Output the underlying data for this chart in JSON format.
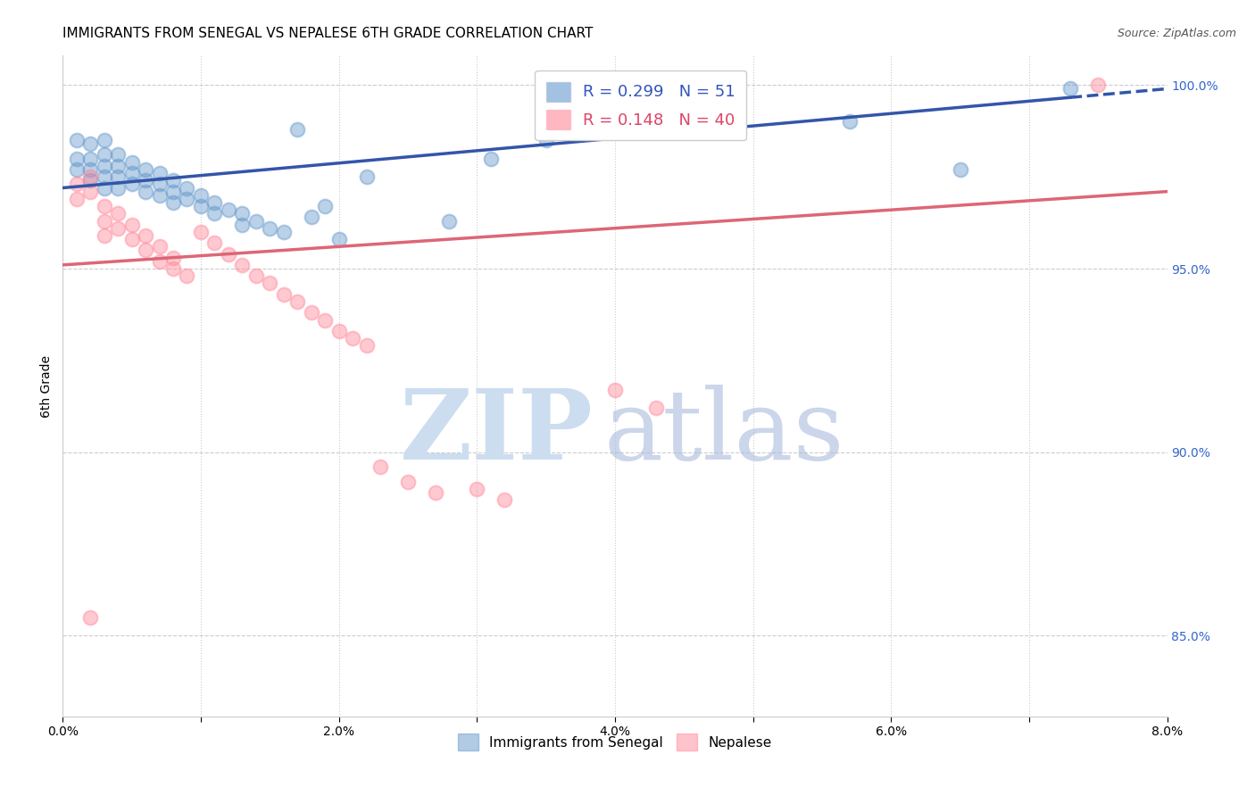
{
  "title": "IMMIGRANTS FROM SENEGAL VS NEPALESE 6TH GRADE CORRELATION CHART",
  "source": "Source: ZipAtlas.com",
  "ylabel": "6th Grade",
  "xlim": [
    0.0,
    0.08
  ],
  "ylim": [
    0.828,
    1.008
  ],
  "xticks": [
    0.0,
    0.01,
    0.02,
    0.03,
    0.04,
    0.05,
    0.06,
    0.07,
    0.08
  ],
  "xticklabels": [
    "0.0%",
    "",
    "2.0%",
    "",
    "4.0%",
    "",
    "6.0%",
    "",
    "8.0%"
  ],
  "yticks_right": [
    0.85,
    0.9,
    0.95,
    1.0
  ],
  "ytick_right_labels": [
    "85.0%",
    "90.0%",
    "95.0%",
    "100.0%"
  ],
  "legend_labels": [
    "Immigrants from Senegal",
    "Nepalese"
  ],
  "R_blue": 0.299,
  "N_blue": 51,
  "R_pink": 0.148,
  "N_pink": 40,
  "blue_color": "#6699CC",
  "pink_color": "#FF8899",
  "blue_line_color": "#3355AA",
  "pink_line_color": "#DD6677",
  "blue_line_y0": 0.972,
  "blue_line_y1": 0.999,
  "blue_line_x0": 0.0,
  "blue_line_x1": 0.08,
  "blue_line_solid_end": 0.073,
  "pink_line_y0": 0.951,
  "pink_line_y1": 0.971,
  "pink_line_x0": 0.0,
  "pink_line_x1": 0.08,
  "blue_scatter_x": [
    0.001,
    0.001,
    0.001,
    0.002,
    0.002,
    0.002,
    0.002,
    0.003,
    0.003,
    0.003,
    0.003,
    0.003,
    0.004,
    0.004,
    0.004,
    0.004,
    0.005,
    0.005,
    0.005,
    0.006,
    0.006,
    0.006,
    0.007,
    0.007,
    0.007,
    0.008,
    0.008,
    0.008,
    0.009,
    0.009,
    0.01,
    0.01,
    0.011,
    0.011,
    0.012,
    0.013,
    0.013,
    0.014,
    0.015,
    0.016,
    0.017,
    0.018,
    0.019,
    0.02,
    0.022,
    0.028,
    0.031,
    0.035,
    0.057,
    0.065,
    0.073
  ],
  "blue_scatter_y": [
    0.985,
    0.98,
    0.977,
    0.984,
    0.98,
    0.977,
    0.974,
    0.985,
    0.981,
    0.978,
    0.975,
    0.972,
    0.981,
    0.978,
    0.975,
    0.972,
    0.979,
    0.976,
    0.973,
    0.977,
    0.974,
    0.971,
    0.976,
    0.973,
    0.97,
    0.974,
    0.971,
    0.968,
    0.972,
    0.969,
    0.97,
    0.967,
    0.968,
    0.965,
    0.966,
    0.965,
    0.962,
    0.963,
    0.961,
    0.96,
    0.988,
    0.964,
    0.967,
    0.958,
    0.975,
    0.963,
    0.98,
    0.985,
    0.99,
    0.977,
    0.999
  ],
  "pink_scatter_x": [
    0.001,
    0.001,
    0.002,
    0.002,
    0.003,
    0.003,
    0.003,
    0.004,
    0.004,
    0.005,
    0.005,
    0.006,
    0.006,
    0.007,
    0.007,
    0.008,
    0.008,
    0.009,
    0.01,
    0.011,
    0.012,
    0.013,
    0.014,
    0.015,
    0.016,
    0.017,
    0.018,
    0.019,
    0.02,
    0.021,
    0.022,
    0.023,
    0.025,
    0.027,
    0.03,
    0.032,
    0.04,
    0.043,
    0.075,
    0.002
  ],
  "pink_scatter_y": [
    0.973,
    0.969,
    0.975,
    0.971,
    0.967,
    0.963,
    0.959,
    0.965,
    0.961,
    0.962,
    0.958,
    0.959,
    0.955,
    0.956,
    0.952,
    0.953,
    0.95,
    0.948,
    0.96,
    0.957,
    0.954,
    0.951,
    0.948,
    0.946,
    0.943,
    0.941,
    0.938,
    0.936,
    0.933,
    0.931,
    0.929,
    0.896,
    0.892,
    0.889,
    0.89,
    0.887,
    0.917,
    0.912,
    1.0,
    0.855
  ],
  "grid_color": "#CCCCCC",
  "background_color": "#FFFFFF",
  "title_fontsize": 11
}
